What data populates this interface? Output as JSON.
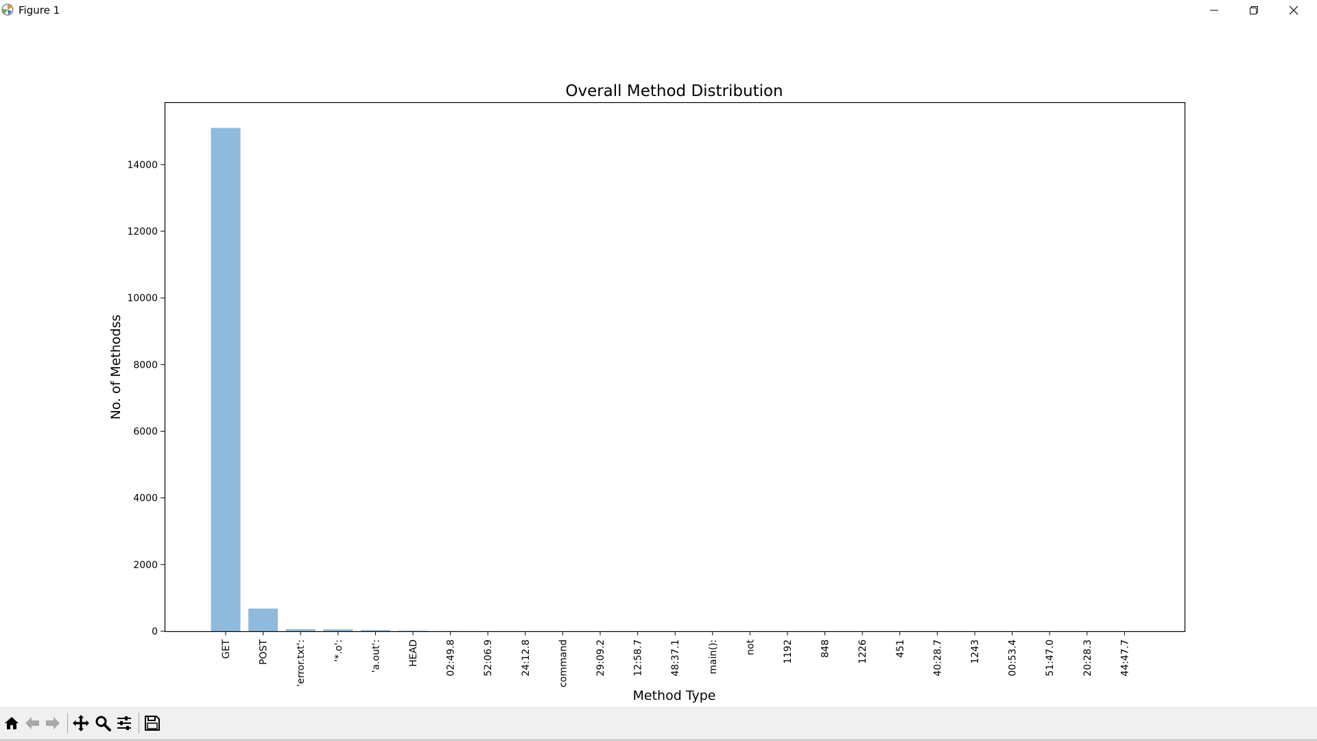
{
  "window": {
    "title": "Figure 1",
    "icons": {
      "app": "matplotlib-icon",
      "minimize": "minimize-icon",
      "maximize": "restore-icon",
      "close": "close-icon"
    }
  },
  "toolbar": {
    "buttons": [
      "home-icon",
      "back-icon",
      "forward-icon",
      "pan-icon",
      "zoom-icon",
      "configure-subplots-icon",
      "save-icon"
    ]
  },
  "colors": {
    "bar": "#8fbadb",
    "axis": "#000000",
    "toolbar_bg": "#f0f0f0"
  },
  "chart_data": {
    "type": "bar",
    "title": "Overall Method Distribution",
    "xlabel": "Method Type",
    "ylabel": "No. of Methodss",
    "categories": [
      "GET",
      "POST",
      "'error.txt':",
      "'*.o':",
      "'a.out':",
      "HEAD",
      "02:49.8",
      "52:06.9",
      "24:12.8",
      "command",
      "29:09.2",
      "12:58.7",
      "48:37.1",
      "main():",
      "not",
      "1192",
      "848",
      "1226",
      "451",
      "40:28.7",
      "1243",
      "00:53.4",
      "51:47.0",
      "20:28.3",
      "44:47.7"
    ],
    "values": [
      15100,
      680,
      60,
      55,
      35,
      15,
      3,
      2,
      2,
      2,
      1,
      1,
      1,
      1,
      1,
      1,
      1,
      1,
      1,
      1,
      1,
      1,
      1,
      1,
      1
    ],
    "yticks": [
      0,
      2000,
      4000,
      6000,
      8000,
      10000,
      12000,
      14000
    ],
    "ylim": [
      0,
      15850
    ],
    "grid": false,
    "legend": false
  }
}
